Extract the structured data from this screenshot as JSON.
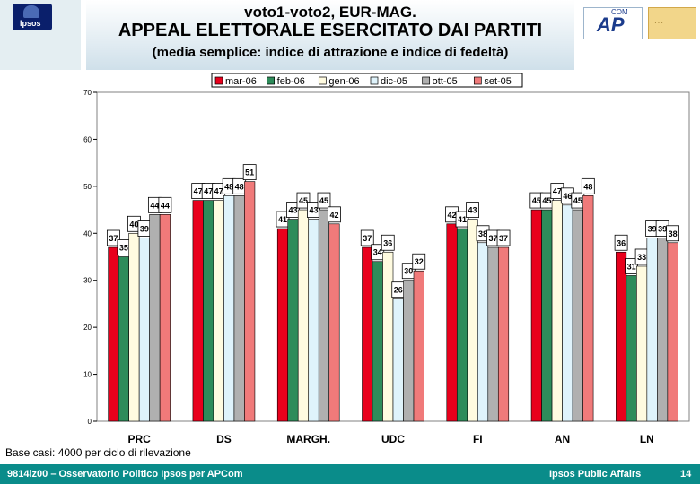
{
  "header": {
    "title_line1": "voto1-voto2, EUR-MAG.",
    "title_line2": "APPEAL ELETTORALE ESERCITATO DAI PARTITI",
    "title_line3": "(media semplice: indice di attrazione e indice di fedeltà)",
    "ipsos_logo_text": "Ipsos",
    "apcom_logo_text": "AP",
    "apcom_logo_sub": "COM"
  },
  "footnote": "Base casi: 4000 per ciclo di rilevazione",
  "footer": {
    "left": "9814iz00 – Osservatorio Politico Ipsos per APCom",
    "right": "Ipsos Public Affairs",
    "page": "14"
  },
  "colors": {
    "mar-06": "#e8001c",
    "feb-06": "#2e8c5a",
    "gen-06": "#fffbe0",
    "dic-05": "#dff3fb",
    "ott-05": "#b0b0b0",
    "set-05": "#f07a7a"
  },
  "chart_data": {
    "type": "bar",
    "categories": [
      "PRC",
      "DS",
      "MARGH.",
      "UDC",
      "FI",
      "AN",
      "LN"
    ],
    "series": [
      {
        "name": "mar-06",
        "values": [
          37,
          47,
          41,
          37,
          42,
          45,
          36
        ]
      },
      {
        "name": "feb-06",
        "values": [
          35,
          47,
          43,
          34,
          41,
          45,
          31
        ]
      },
      {
        "name": "gen-06",
        "values": [
          40,
          47,
          45,
          36,
          43,
          47,
          33
        ]
      },
      {
        "name": "dic-05",
        "values": [
          39,
          48,
          43,
          26,
          38,
          46,
          39
        ]
      },
      {
        "name": "ott-05",
        "values": [
          44,
          48,
          45,
          30,
          37,
          45,
          39
        ]
      },
      {
        "name": "set-05",
        "values": [
          44,
          51,
          42,
          32,
          37,
          48,
          38
        ]
      }
    ],
    "ylim": [
      0,
      70
    ],
    "yticks": [
      0,
      10,
      20,
      30,
      40,
      50,
      60,
      70
    ],
    "legend_position": "top",
    "grid": false
  }
}
